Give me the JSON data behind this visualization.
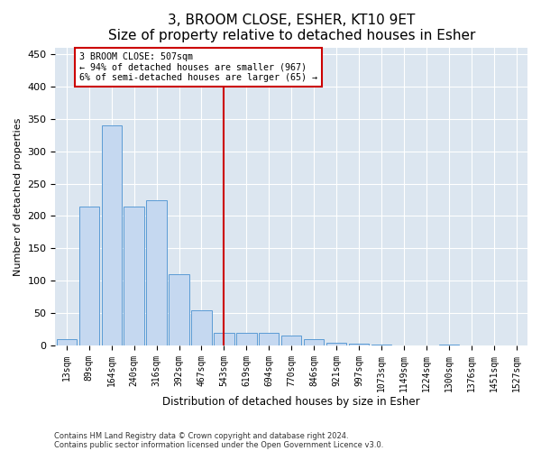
{
  "title": "3, BROOM CLOSE, ESHER, KT10 9ET",
  "subtitle": "Size of property relative to detached houses in Esher",
  "xlabel": "Distribution of detached houses by size in Esher",
  "ylabel": "Number of detached properties",
  "categories": [
    "13sqm",
    "89sqm",
    "164sqm",
    "240sqm",
    "316sqm",
    "392sqm",
    "467sqm",
    "543sqm",
    "619sqm",
    "694sqm",
    "770sqm",
    "846sqm",
    "921sqm",
    "997sqm",
    "1073sqm",
    "1149sqm",
    "1224sqm",
    "1300sqm",
    "1376sqm",
    "1451sqm",
    "1527sqm"
  ],
  "values": [
    10,
    215,
    340,
    215,
    225,
    110,
    55,
    20,
    20,
    20,
    15,
    10,
    5,
    3,
    1,
    0,
    0,
    1,
    0,
    0,
    0
  ],
  "bar_color": "#c5d8f0",
  "bar_edge_color": "#5b9bd5",
  "vline_x": 7,
  "vline_color": "#cc0000",
  "annotation_text": "3 BROOM CLOSE: 507sqm\n← 94% of detached houses are smaller (967)\n6% of semi-detached houses are larger (65) →",
  "annotation_box_color": "#cc0000",
  "annotation_bg": "#ffffff",
  "footer1": "Contains HM Land Registry data © Crown copyright and database right 2024.",
  "footer2": "Contains public sector information licensed under the Open Government Licence v3.0.",
  "ylim": [
    0,
    460
  ],
  "plot_bg_color": "#dce6f0",
  "title_fontsize": 11,
  "subtitle_fontsize": 9,
  "tick_fontsize": 7,
  "ylabel_fontsize": 8,
  "yticks": [
    0,
    50,
    100,
    150,
    200,
    250,
    300,
    350,
    400,
    450
  ]
}
